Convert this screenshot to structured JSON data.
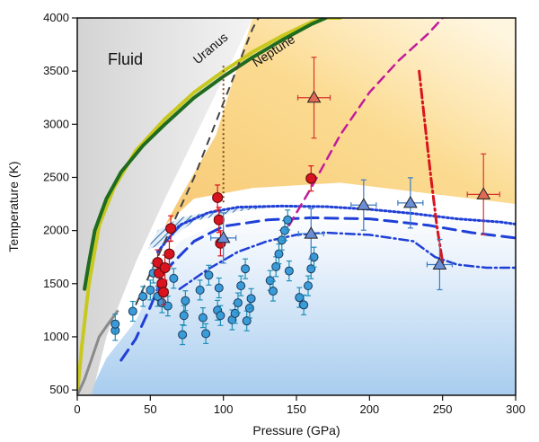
{
  "chart_data": {
    "type": "scatter",
    "title": "",
    "xlabel": "Pressure (GPa)",
    "ylabel": "Temperature (K)",
    "xlim": [
      0,
      300
    ],
    "ylim": [
      450,
      4000
    ],
    "xticks": [
      "0",
      "50",
      "100",
      "150",
      "200",
      "250",
      "300"
    ],
    "yticks": [
      "500",
      "1000",
      "1500",
      "2000",
      "2500",
      "3000",
      "3500",
      "4000"
    ],
    "annotations": {
      "fluid": "Fluid",
      "uranus": "Uranus",
      "neptune": "Neptune"
    },
    "colors": {
      "uranus": "#c8c81e",
      "neptune": "#1f6b1f",
      "blue_marker": "#3a9bd9",
      "red_marker": "#d9141e",
      "triangle_blue": "#6a8fd8",
      "triangle_red": "#e06a55",
      "blue_curve": "#1f3fd6",
      "red_curve": "#d9141e",
      "magenta_curve": "#c21c9c"
    },
    "series": [
      {
        "name": "Uranus isentrope",
        "style": "solid",
        "x": [
          0,
          3,
          8,
          15,
          25,
          40,
          60,
          80,
          100,
          120,
          140,
          160,
          170,
          180
        ],
        "y": [
          450,
          900,
          1500,
          2050,
          2400,
          2750,
          3050,
          3300,
          3500,
          3680,
          3830,
          3960,
          4000,
          4000
        ]
      },
      {
        "name": "Neptune isentrope",
        "style": "solid",
        "x": [
          5,
          8,
          12,
          20,
          30,
          45,
          60,
          80,
          100,
          120,
          140,
          160,
          170
        ],
        "y": [
          1450,
          1700,
          2000,
          2300,
          2550,
          2800,
          3000,
          3250,
          3450,
          3630,
          3790,
          3940,
          4000
        ]
      },
      {
        "name": "Blue melting-like dashed",
        "style": "dashed",
        "x": [
          30,
          40,
          50,
          60,
          80,
          100,
          130,
          160,
          200,
          240,
          270,
          300
        ],
        "y": [
          780,
          980,
          1280,
          1620,
          1900,
          2040,
          2100,
          2120,
          2110,
          2050,
          1980,
          1930
        ]
      },
      {
        "name": "Blue dotted",
        "style": "dotted",
        "x": [
          55,
          70,
          90,
          110,
          140,
          170,
          200,
          230,
          260,
          290,
          300
        ],
        "y": [
          1800,
          2050,
          2170,
          2220,
          2230,
          2225,
          2200,
          2160,
          2110,
          2080,
          2060
        ]
      },
      {
        "name": "Blue dash-dot",
        "style": "dashdot",
        "x": [
          70,
          90,
          110,
          130,
          150,
          170,
          200,
          230,
          245,
          260,
          280,
          300
        ],
        "y": [
          1450,
          1640,
          1800,
          1900,
          1960,
          1980,
          1960,
          1900,
          1750,
          1680,
          1650,
          1650
        ]
      },
      {
        "name": "Red dash-dot",
        "style": "dashdot",
        "x": [
          234,
          238,
          242,
          246,
          250
        ],
        "y": [
          3500,
          3000,
          2500,
          2050,
          1700
        ]
      },
      {
        "name": "Magenta dashed",
        "style": "dashed",
        "x": [
          145,
          160,
          180,
          200,
          220,
          240,
          250
        ],
        "y": [
          2050,
          2400,
          2900,
          3300,
          3600,
          3850,
          4000
        ]
      }
    ],
    "points_blue": [
      {
        "x": 26,
        "y": 1060
      },
      {
        "x": 26,
        "y": 1120
      },
      {
        "x": 38,
        "y": 1240
      },
      {
        "x": 45,
        "y": 1380
      },
      {
        "x": 50,
        "y": 1440
      },
      {
        "x": 52,
        "y": 1600
      },
      {
        "x": 55,
        "y": 1380
      },
      {
        "x": 58,
        "y": 1320
      },
      {
        "x": 62,
        "y": 1290
      },
      {
        "x": 66,
        "y": 1550
      },
      {
        "x": 72,
        "y": 1020
      },
      {
        "x": 73,
        "y": 1200
      },
      {
        "x": 74,
        "y": 1340
      },
      {
        "x": 84,
        "y": 1440
      },
      {
        "x": 86,
        "y": 1180
      },
      {
        "x": 88,
        "y": 1030
      },
      {
        "x": 90,
        "y": 1580
      },
      {
        "x": 96,
        "y": 1250
      },
      {
        "x": 97,
        "y": 1460
      },
      {
        "x": 98,
        "y": 1200
      },
      {
        "x": 106,
        "y": 1160
      },
      {
        "x": 108,
        "y": 1220
      },
      {
        "x": 110,
        "y": 1320
      },
      {
        "x": 112,
        "y": 1480
      },
      {
        "x": 115,
        "y": 1640
      },
      {
        "x": 116,
        "y": 1150
      },
      {
        "x": 118,
        "y": 1270
      },
      {
        "x": 119,
        "y": 1360
      },
      {
        "x": 132,
        "y": 1530
      },
      {
        "x": 134,
        "y": 1430
      },
      {
        "x": 136,
        "y": 1660
      },
      {
        "x": 138,
        "y": 1780
      },
      {
        "x": 140,
        "y": 1910
      },
      {
        "x": 142,
        "y": 2000
      },
      {
        "x": 144,
        "y": 2100
      },
      {
        "x": 145,
        "y": 1620
      },
      {
        "x": 152,
        "y": 1370
      },
      {
        "x": 155,
        "y": 1300
      },
      {
        "x": 158,
        "y": 1480
      },
      {
        "x": 160,
        "y": 1640
      },
      {
        "x": 162,
        "y": 1750
      }
    ],
    "points_red": [
      {
        "x": 55,
        "y": 1700
      },
      {
        "x": 56,
        "y": 1600
      },
      {
        "x": 58,
        "y": 1500
      },
      {
        "x": 59,
        "y": 1420
      },
      {
        "x": 60,
        "y": 1650
      },
      {
        "x": 63,
        "y": 1780
      },
      {
        "x": 64,
        "y": 2020
      },
      {
        "x": 96,
        "y": 2310
      },
      {
        "x": 97,
        "y": 2100
      },
      {
        "x": 98,
        "y": 1880
      },
      {
        "x": 160,
        "y": 2490
      }
    ],
    "triangles_blue": [
      {
        "x": 100,
        "y": 1930
      },
      {
        "x": 160,
        "y": 1970
      },
      {
        "x": 196,
        "y": 2240
      },
      {
        "x": 228,
        "y": 2260
      },
      {
        "x": 248,
        "y": 1680
      }
    ],
    "triangles_red": [
      {
        "x": 162,
        "y": 3250
      },
      {
        "x": 278,
        "y": 2340
      }
    ]
  }
}
